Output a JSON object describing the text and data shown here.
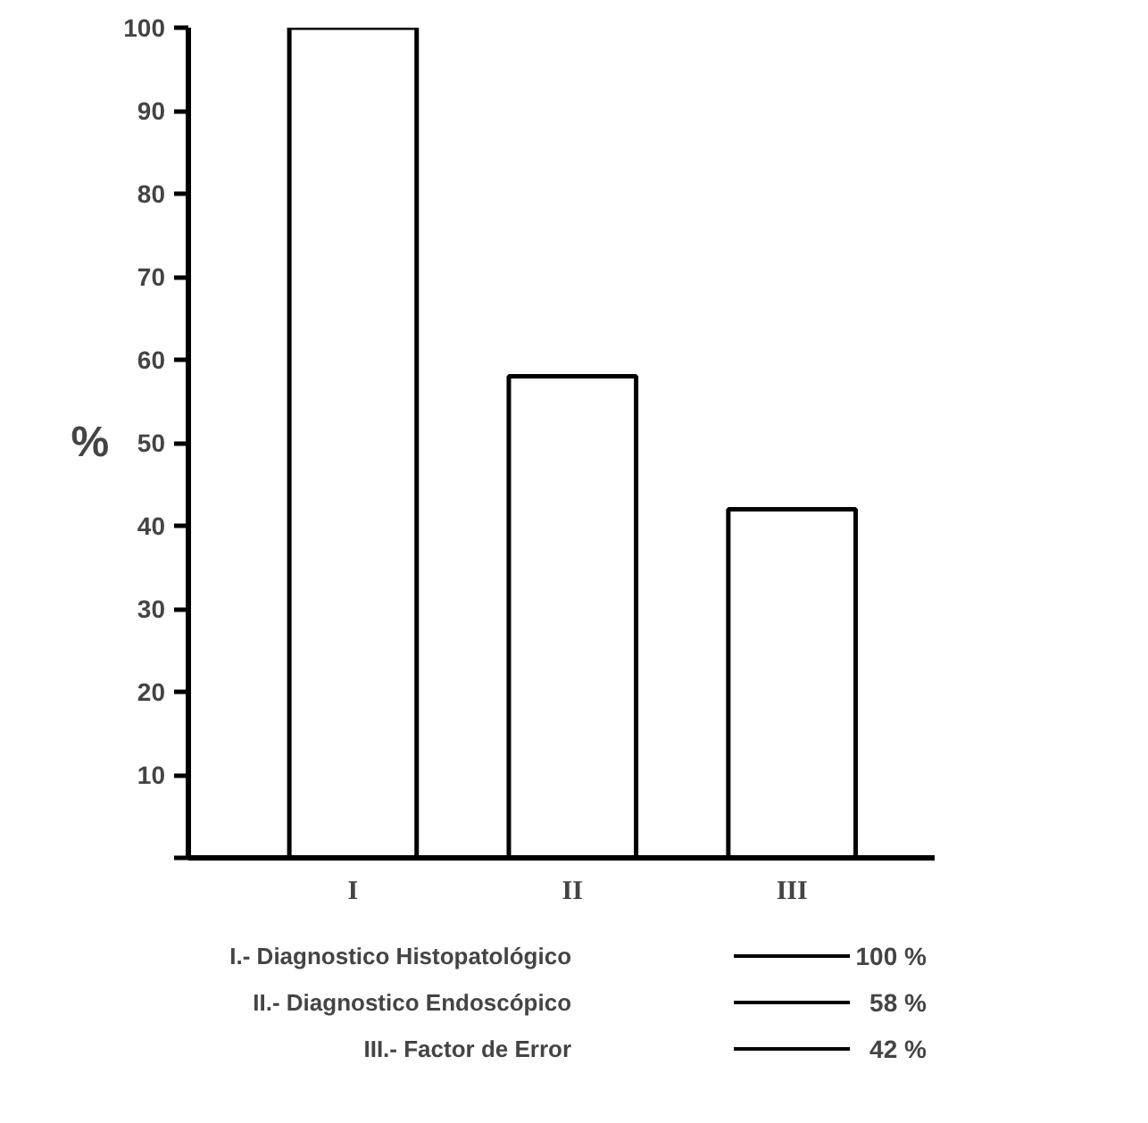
{
  "chart_data": {
    "type": "bar",
    "ylabel": "%",
    "categories": [
      "I",
      "II",
      "III"
    ],
    "values": [
      100,
      58,
      42
    ],
    "annotations": [
      "I.- Diagnostico Histopatológico",
      "100 %",
      "II.- Diagnostico Endoscópico",
      "58 %",
      "III.- Factor de Error",
      "42 %"
    ],
    "color": "#ffffff",
    "ylim": [
      0,
      100
    ],
    "yticks": [
      {
        "value": 0,
        "label": null
      },
      10,
      20,
      30,
      40,
      50,
      60,
      70,
      80,
      90,
      100
    ],
    "grid": false
  }
}
